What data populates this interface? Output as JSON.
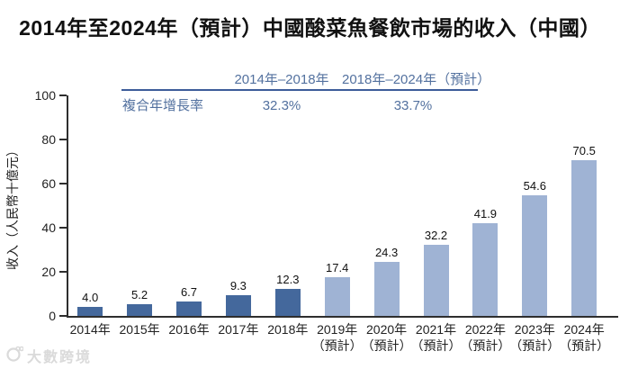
{
  "title": "2014年至2024年（預計）中國酸菜魚餐飲市場的收入（中國）",
  "cagr_table": {
    "columns": [
      "2014年–2018年",
      "2018年–2024年（預計）"
    ],
    "row_label": "複合年增長率",
    "values": [
      "32.3%",
      "33.7%"
    ]
  },
  "watermark": {
    "text": "大數跨境"
  },
  "colors": {
    "actual_bar": "#44689C",
    "forecast_bar": "#9FB3D4",
    "accent_text": "#53719F",
    "rule": "#3D5C99",
    "axis": "#2e2e2e"
  },
  "chart_data": {
    "type": "bar",
    "title": "2014年至2024年（預計）中國酸菜魚餐飲市場的收入（中國）",
    "xlabel": "",
    "ylabel": "收入（人民幣十億元）",
    "ylim": [
      0,
      100
    ],
    "yticks": [
      0,
      20,
      40,
      60,
      80,
      100
    ],
    "grid": false,
    "legend_position": "none",
    "categories": [
      "2014年",
      "2015年",
      "2016年",
      "2017年",
      "2018年",
      "2019年",
      "2020年",
      "2021年",
      "2022年",
      "2023年",
      "2024年"
    ],
    "category_notes": [
      "",
      "",
      "",
      "",
      "",
      "（預計）",
      "（預計）",
      "（預計）",
      "（預計）",
      "（預計）",
      "（預計）"
    ],
    "values": [
      4.0,
      5.2,
      6.7,
      9.3,
      12.3,
      17.4,
      24.3,
      32.2,
      41.9,
      54.6,
      70.5
    ],
    "forecast_from_index": 5,
    "annotations": {
      "cagr_2014_2018": "32.3%",
      "cagr_2018_2024": "33.7%"
    }
  }
}
